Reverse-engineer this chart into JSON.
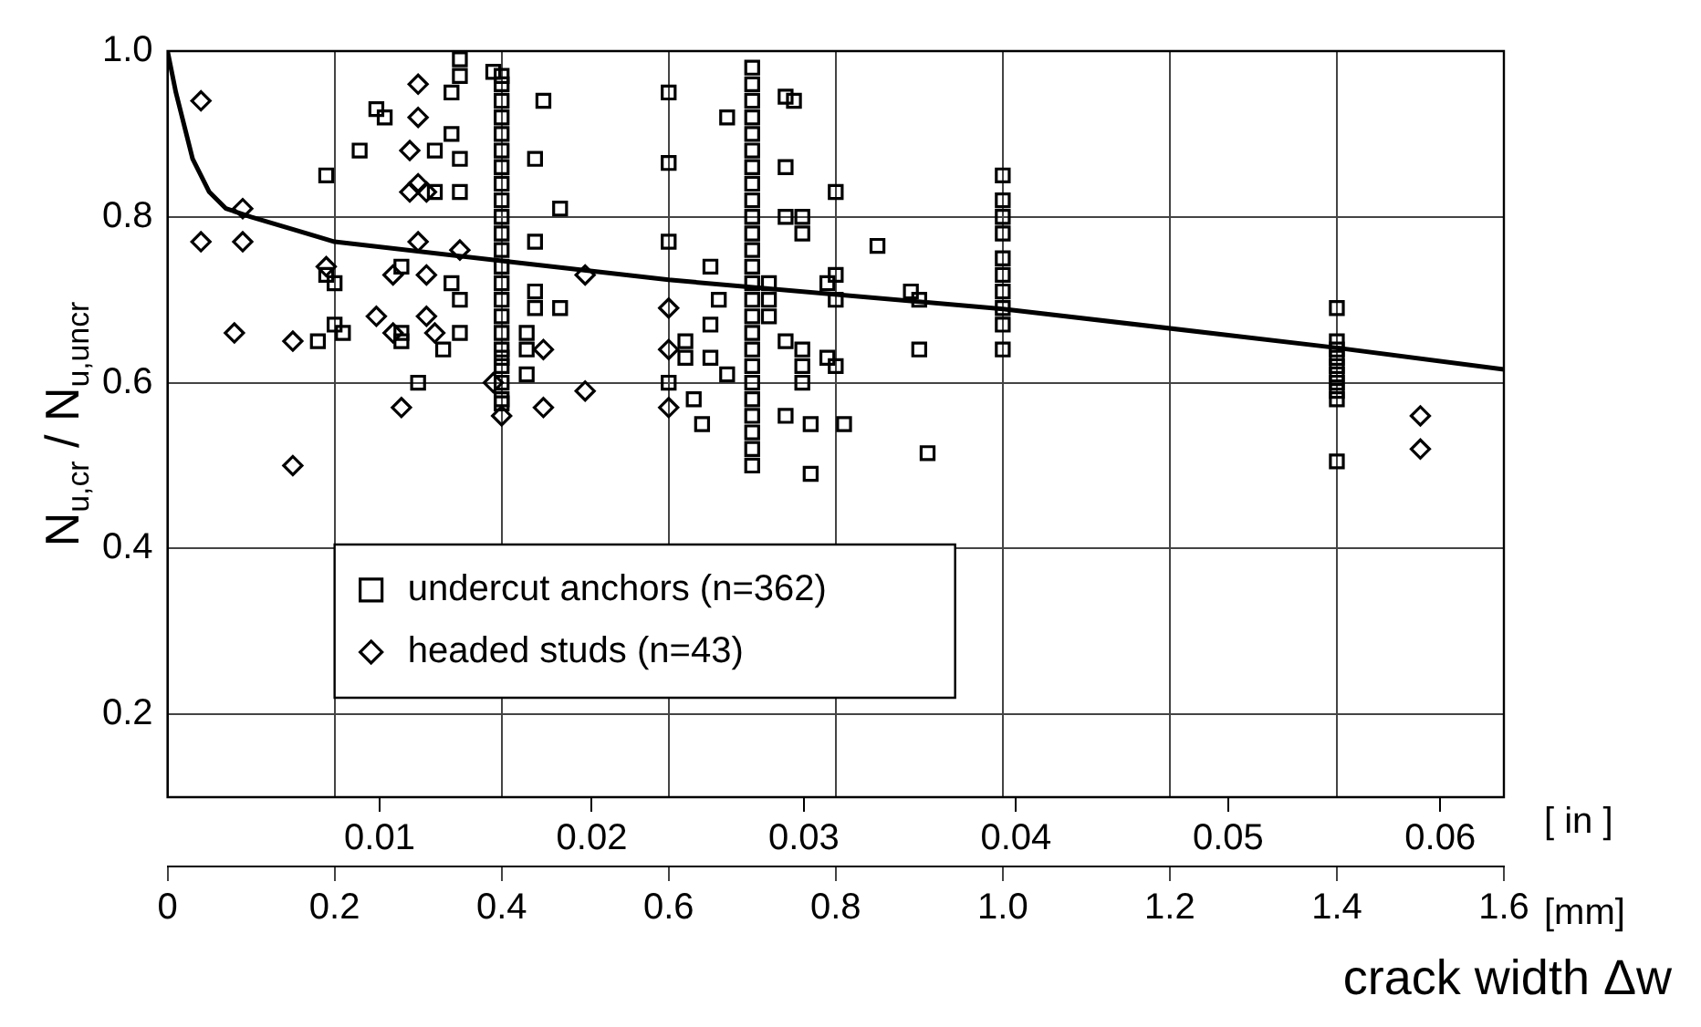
{
  "chart_data": {
    "type": "scatter",
    "xlabel": "crack width Δw",
    "ylabel": "N$_{u,cr}$ / N$_{u,uncr}$",
    "x2label": "[ in ]",
    "annotations": [
      "[mm]"
    ],
    "xlim": [
      0,
      1.6
    ],
    "xticks": [
      0,
      {
        "value": 0.2,
        "label": "0.2"
      },
      {
        "value": 0.4,
        "label": "0.4"
      },
      {
        "value": 0.6,
        "label": "0.6"
      },
      {
        "value": 0.8,
        "label": "0.8"
      },
      {
        "value": 1,
        "label": "1.0"
      },
      {
        "value": 1.2,
        "label": "1.2"
      },
      {
        "value": 1.4,
        "label": "1.4"
      },
      {
        "value": 1.6,
        "label": "1.6"
      }
    ],
    "x2lim": [
      0,
      0.063
    ],
    "x2ticks": [
      0.01,
      0.02,
      0.03,
      0.04,
      0.05,
      0.06
    ],
    "ylim": [
      0.1,
      1.0
    ],
    "yticks": [
      0.2,
      0.4,
      0.6,
      0.8,
      {
        "value": 1,
        "label": "1.0"
      }
    ],
    "grid": true,
    "legend": "bottom left",
    "series": [
      {
        "name": "undercut anchors (n=362)",
        "marker": "square",
        "color": "#000000",
        "x": [
          0.35,
          0.35,
          0.39,
          0.4,
          0.4,
          0.45,
          0.25,
          0.26,
          0.23,
          0.19,
          0.32,
          0.34,
          0.34,
          0.35,
          0.44,
          0.32,
          0.35,
          0.4,
          0.47,
          0.44,
          0.28,
          0.19,
          0.2,
          0.34,
          0.35,
          0.44,
          0.44,
          0.47,
          0.2,
          0.21,
          0.18,
          0.28,
          0.28,
          0.33,
          0.35,
          0.43,
          0.43,
          0.43,
          0.3,
          0.4,
          0.4,
          0.4,
          0.4,
          0.4,
          0.4,
          0.4,
          0.4,
          0.4,
          0.4,
          0.4,
          0.4,
          0.4,
          0.4,
          0.4,
          0.4,
          0.4,
          0.4,
          0.4,
          0.4,
          0.6,
          0.6,
          0.6,
          0.6,
          0.7,
          0.7,
          0.7,
          0.7,
          0.7,
          0.7,
          0.7,
          0.7,
          0.7,
          0.7,
          0.7,
          0.7,
          0.7,
          0.7,
          0.7,
          0.7,
          0.7,
          0.7,
          0.7,
          0.7,
          0.7,
          0.7,
          0.7,
          0.7,
          0.7,
          0.74,
          0.75,
          0.67,
          0.74,
          0.8,
          0.85,
          0.74,
          0.76,
          0.76,
          0.65,
          0.8,
          0.79,
          0.8,
          0.66,
          0.72,
          0.72,
          0.72,
          0.65,
          0.62,
          0.62,
          0.65,
          0.74,
          0.76,
          0.76,
          0.79,
          0.8,
          0.76,
          0.67,
          0.63,
          0.64,
          0.74,
          0.77,
          0.81,
          0.77,
          0.89,
          0.9,
          0.9,
          0.91,
          1,
          1,
          1,
          1,
          1,
          1,
          1,
          1,
          1,
          1,
          1.4,
          1.4,
          1.4,
          1.4,
          1.4,
          1.4,
          1.4,
          1.4,
          1.4,
          1.4
        ],
        "values": [
          0.99,
          0.97,
          0.975,
          0.97,
          0.94,
          0.94,
          0.93,
          0.92,
          0.88,
          0.85,
          0.88,
          0.95,
          0.9,
          0.87,
          0.87,
          0.83,
          0.83,
          0.82,
          0.81,
          0.77,
          0.74,
          0.73,
          0.72,
          0.72,
          0.7,
          0.71,
          0.69,
          0.69,
          0.67,
          0.66,
          0.65,
          0.66,
          0.65,
          0.64,
          0.66,
          0.66,
          0.64,
          0.61,
          0.6,
          0.96,
          0.92,
          0.9,
          0.88,
          0.86,
          0.84,
          0.8,
          0.78,
          0.76,
          0.74,
          0.72,
          0.7,
          0.68,
          0.66,
          0.64,
          0.62,
          0.6,
          0.58,
          0.575,
          0.63,
          0.95,
          0.865,
          0.77,
          0.6,
          0.98,
          0.96,
          0.94,
          0.92,
          0.9,
          0.88,
          0.86,
          0.84,
          0.82,
          0.8,
          0.78,
          0.76,
          0.74,
          0.72,
          0.7,
          0.68,
          0.66,
          0.64,
          0.62,
          0.6,
          0.58,
          0.56,
          0.54,
          0.52,
          0.5,
          0.945,
          0.94,
          0.92,
          0.86,
          0.83,
          0.765,
          0.8,
          0.8,
          0.78,
          0.74,
          0.73,
          0.72,
          0.7,
          0.7,
          0.72,
          0.7,
          0.68,
          0.67,
          0.65,
          0.63,
          0.63,
          0.65,
          0.64,
          0.62,
          0.63,
          0.62,
          0.6,
          0.61,
          0.58,
          0.55,
          0.56,
          0.55,
          0.55,
          0.49,
          0.71,
          0.7,
          0.64,
          0.515,
          0.85,
          0.82,
          0.8,
          0.78,
          0.75,
          0.73,
          0.71,
          0.69,
          0.67,
          0.64,
          0.69,
          0.65,
          0.64,
          0.63,
          0.62,
          0.61,
          0.6,
          0.59,
          0.58,
          0.505
        ]
      },
      {
        "name": "headed studs (n=43)",
        "marker": "diamond",
        "color": "#000000",
        "x": [
          0.04,
          0.09,
          0.04,
          0.09,
          0.08,
          0.15,
          0.15,
          0.3,
          0.3,
          0.29,
          0.29,
          0.3,
          0.31,
          0.3,
          0.35,
          0.27,
          0.31,
          0.19,
          0.25,
          0.31,
          0.32,
          0.27,
          0.28,
          0.45,
          0.45,
          0.39,
          0.4,
          0.5,
          0.5,
          0.6,
          0.6,
          0.6,
          1.5,
          1.5
        ],
        "values": [
          0.94,
          0.81,
          0.77,
          0.77,
          0.66,
          0.65,
          0.5,
          0.96,
          0.92,
          0.88,
          0.83,
          0.84,
          0.83,
          0.77,
          0.76,
          0.73,
          0.73,
          0.74,
          0.68,
          0.68,
          0.66,
          0.66,
          0.57,
          0.57,
          0.64,
          0.6,
          0.56,
          0.73,
          0.59,
          0.69,
          0.64,
          0.57,
          0.56,
          0.52
        ]
      },
      {
        "type": "line",
        "marker": "none",
        "color": "#000000",
        "x": [
          0,
          0.01,
          0.03,
          0.05,
          0.07,
          0.1,
          0.2,
          0.4,
          0.6,
          1,
          1.4,
          1.6
        ],
        "values": [
          1,
          0.95,
          0.87,
          0.83,
          0.81,
          0.8,
          0.77,
          0.747,
          0.724,
          0.689,
          0.642,
          0.616
        ]
      }
    ]
  }
}
